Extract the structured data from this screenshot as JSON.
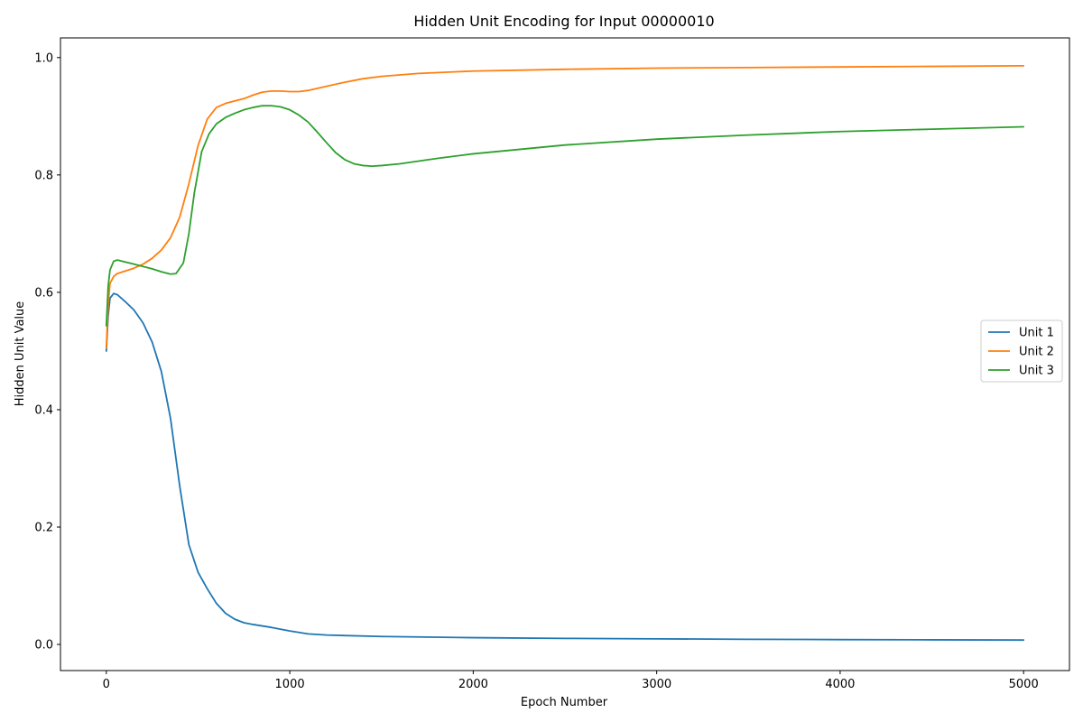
{
  "chart_data": {
    "type": "line",
    "title": "Hidden Unit Encoding for Input 00000010",
    "xlabel": "Epoch Number",
    "ylabel": "Hidden Unit Value",
    "xlim": [
      -250,
      5250
    ],
    "ylim": [
      -0.0445,
      1.0335
    ],
    "xticks": [
      0,
      1000,
      2000,
      3000,
      4000,
      5000
    ],
    "xtick_labels": [
      "0",
      "1000",
      "2000",
      "3000",
      "4000",
      "5000"
    ],
    "yticks": [
      0.0,
      0.2,
      0.4,
      0.6,
      0.8,
      1.0
    ],
    "ytick_labels": [
      "0.0",
      "0.2",
      "0.4",
      "0.6",
      "0.8",
      "1.0"
    ],
    "grid": false,
    "legend_position": "center-right",
    "series": [
      {
        "name": "Unit 1",
        "color": "#1f77b4",
        "points": [
          [
            0,
            0.5
          ],
          [
            10,
            0.56
          ],
          [
            20,
            0.59
          ],
          [
            40,
            0.598
          ],
          [
            60,
            0.596
          ],
          [
            100,
            0.585
          ],
          [
            150,
            0.57
          ],
          [
            200,
            0.548
          ],
          [
            250,
            0.515
          ],
          [
            300,
            0.465
          ],
          [
            350,
            0.385
          ],
          [
            400,
            0.27
          ],
          [
            450,
            0.17
          ],
          [
            500,
            0.123
          ],
          [
            550,
            0.095
          ],
          [
            600,
            0.07
          ],
          [
            650,
            0.053
          ],
          [
            700,
            0.043
          ],
          [
            750,
            0.037
          ],
          [
            800,
            0.034
          ],
          [
            900,
            0.029
          ],
          [
            1000,
            0.023
          ],
          [
            1100,
            0.018
          ],
          [
            1200,
            0.016
          ],
          [
            1500,
            0.0135
          ],
          [
            2000,
            0.0115
          ],
          [
            2500,
            0.0103
          ],
          [
            3000,
            0.0095
          ],
          [
            3500,
            0.0088
          ],
          [
            4000,
            0.0083
          ],
          [
            4500,
            0.0079
          ],
          [
            5000,
            0.0075
          ]
        ]
      },
      {
        "name": "Unit 2",
        "color": "#ff7f0e",
        "points": [
          [
            0,
            0.505
          ],
          [
            10,
            0.58
          ],
          [
            20,
            0.615
          ],
          [
            40,
            0.627
          ],
          [
            60,
            0.632
          ],
          [
            100,
            0.636
          ],
          [
            150,
            0.641
          ],
          [
            200,
            0.648
          ],
          [
            250,
            0.658
          ],
          [
            300,
            0.672
          ],
          [
            350,
            0.693
          ],
          [
            400,
            0.728
          ],
          [
            450,
            0.785
          ],
          [
            500,
            0.85
          ],
          [
            550,
            0.895
          ],
          [
            600,
            0.915
          ],
          [
            650,
            0.922
          ],
          [
            700,
            0.926
          ],
          [
            750,
            0.93
          ],
          [
            800,
            0.936
          ],
          [
            850,
            0.941
          ],
          [
            900,
            0.943
          ],
          [
            950,
            0.943
          ],
          [
            1000,
            0.942
          ],
          [
            1050,
            0.942
          ],
          [
            1100,
            0.944
          ],
          [
            1200,
            0.951
          ],
          [
            1300,
            0.958
          ],
          [
            1400,
            0.964
          ],
          [
            1500,
            0.968
          ],
          [
            1700,
            0.973
          ],
          [
            2000,
            0.977
          ],
          [
            2500,
            0.98
          ],
          [
            3000,
            0.982
          ],
          [
            3500,
            0.983
          ],
          [
            4000,
            0.984
          ],
          [
            4500,
            0.985
          ],
          [
            5000,
            0.986
          ]
        ]
      },
      {
        "name": "Unit 3",
        "color": "#2ca02c",
        "points": [
          [
            0,
            0.543
          ],
          [
            10,
            0.61
          ],
          [
            20,
            0.638
          ],
          [
            40,
            0.653
          ],
          [
            60,
            0.655
          ],
          [
            100,
            0.652
          ],
          [
            150,
            0.648
          ],
          [
            200,
            0.644
          ],
          [
            250,
            0.64
          ],
          [
            300,
            0.635
          ],
          [
            350,
            0.631
          ],
          [
            380,
            0.632
          ],
          [
            420,
            0.65
          ],
          [
            450,
            0.7
          ],
          [
            480,
            0.77
          ],
          [
            520,
            0.84
          ],
          [
            560,
            0.87
          ],
          [
            600,
            0.887
          ],
          [
            650,
            0.898
          ],
          [
            700,
            0.905
          ],
          [
            750,
            0.911
          ],
          [
            800,
            0.915
          ],
          [
            850,
            0.918
          ],
          [
            900,
            0.918
          ],
          [
            950,
            0.916
          ],
          [
            1000,
            0.911
          ],
          [
            1050,
            0.902
          ],
          [
            1100,
            0.89
          ],
          [
            1150,
            0.873
          ],
          [
            1200,
            0.855
          ],
          [
            1250,
            0.838
          ],
          [
            1300,
            0.826
          ],
          [
            1350,
            0.819
          ],
          [
            1400,
            0.816
          ],
          [
            1450,
            0.815
          ],
          [
            1500,
            0.816
          ],
          [
            1600,
            0.819
          ],
          [
            1800,
            0.828
          ],
          [
            2000,
            0.836
          ],
          [
            2500,
            0.851
          ],
          [
            3000,
            0.861
          ],
          [
            3500,
            0.868
          ],
          [
            4000,
            0.874
          ],
          [
            4500,
            0.878
          ],
          [
            5000,
            0.882
          ]
        ]
      }
    ]
  }
}
